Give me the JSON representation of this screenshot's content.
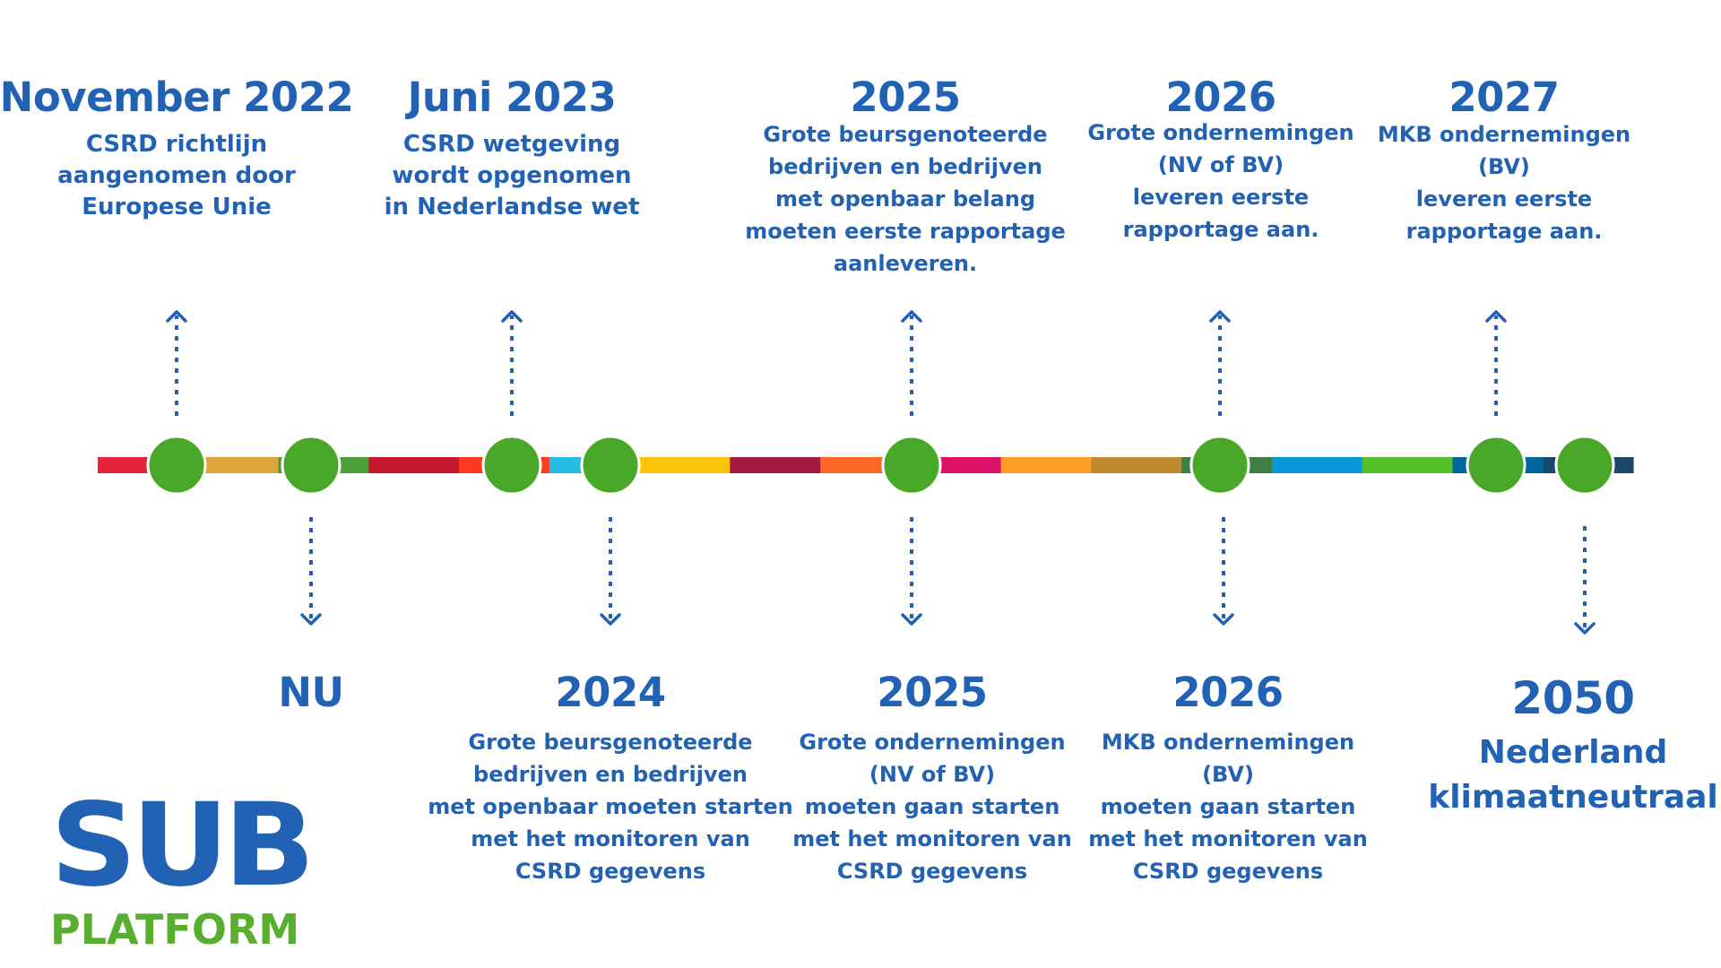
{
  "timeline": {
    "stripe_colors": [
      "#e5243b",
      "#dda63a",
      "#4c9f38",
      "#c5192d",
      "#ff3a21",
      "#26bde2",
      "#fcc30b",
      "#a21942",
      "#fd6925",
      "#dd1367",
      "#fd9d24",
      "#bf8b2e",
      "#3f7e44",
      "#0a97d9",
      "#56c02b",
      "#00689d",
      "#19486a"
    ],
    "node_color": "#4aa829",
    "arrow_color": "#2262b4"
  },
  "top_events": [
    {
      "title": "November 2022",
      "lines": [
        "CSRD richtlijn",
        "aangenomen door",
        "Europese Unie"
      ]
    },
    {
      "title": "Juni 2023",
      "lines": [
        "CSRD wetgeving",
        "wordt opgenomen",
        "in Nederlandse wet"
      ]
    },
    {
      "title": "2025",
      "lines": [
        "Grote beursgenoteerde",
        "bedrijven en bedrijven",
        "met openbaar belang",
        "moeten eerste rapportage",
        "aanleveren."
      ]
    },
    {
      "title": "2026",
      "lines": [
        "Grote ondernemingen",
        "(NV of BV)",
        "leveren eerste",
        "rapportage aan."
      ]
    },
    {
      "title": "2027",
      "lines": [
        "MKB ondernemingen",
        "(BV)",
        "leveren eerste",
        "rapportage aan."
      ]
    }
  ],
  "bottom_events": [
    {
      "title": "NU",
      "lines": []
    },
    {
      "title": "2024",
      "lines": [
        "Grote beursgenoteerde",
        "bedrijven en bedrijven",
        "met openbaar moeten starten",
        "met het monitoren van",
        "CSRD gegevens"
      ]
    },
    {
      "title": "2025",
      "lines": [
        "Grote ondernemingen",
        "(NV of BV)",
        "moeten gaan starten",
        "met het monitoren van",
        "CSRD gegevens"
      ]
    },
    {
      "title": "2026",
      "lines": [
        "MKB ondernemingen",
        "(BV)",
        "moeten gaan starten",
        "met het monitoren van",
        "CSRD gegevens"
      ]
    },
    {
      "title": "2050",
      "lines": [
        "Nederland",
        "klimaatneutraal"
      ]
    }
  ],
  "logo": {
    "top": "SUB",
    "bottom": "PLATFORM",
    "top_color": "#2262b4",
    "bottom_color": "#58ae2f"
  }
}
